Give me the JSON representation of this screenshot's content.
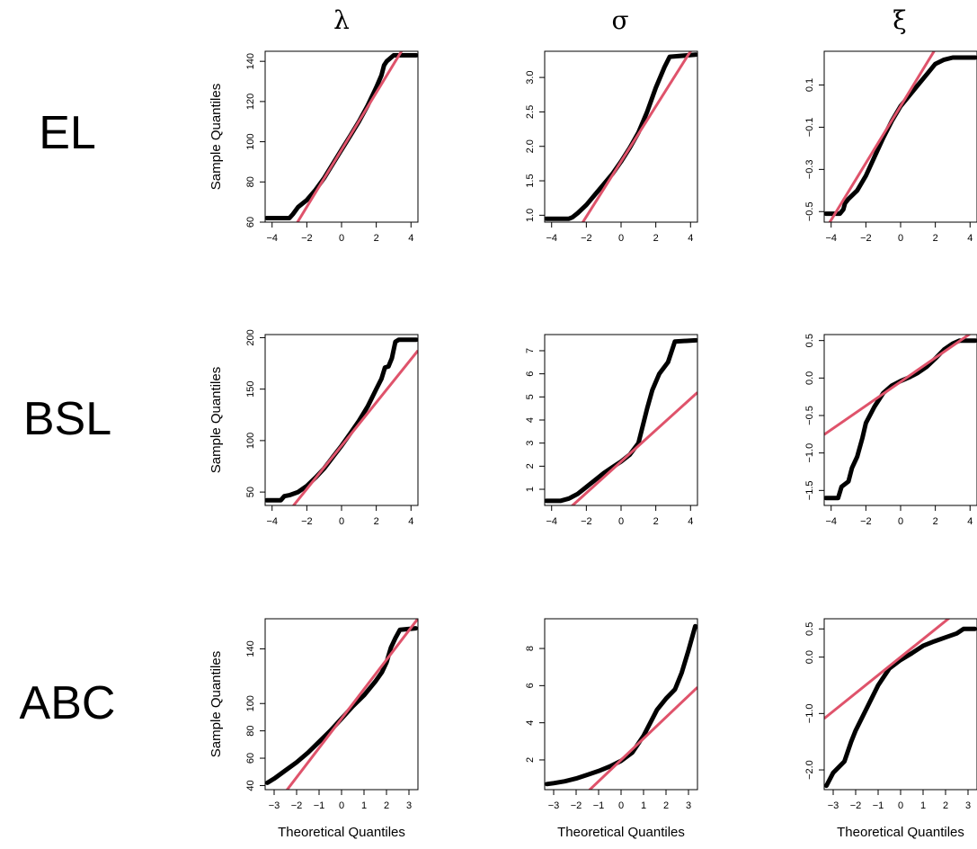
{
  "column_titles": [
    "λ",
    "σ",
    "ξ"
  ],
  "row_labels": [
    "EL",
    "BSL",
    "ABC"
  ],
  "colors": {
    "points": "#000000",
    "qqline": "#DF536B",
    "axis": "#000000"
  },
  "chart_data": [
    {
      "type": "scatter",
      "title": "λ",
      "row": "EL",
      "xlabel": "",
      "ylabel": "Sample Quantiles",
      "xlim": [
        -4.4,
        4.4
      ],
      "ylim": [
        60,
        145
      ],
      "xticks": [
        -4,
        -2,
        0,
        2,
        4
      ],
      "xtick_labels": [
        "−4",
        "−2",
        "0",
        "2",
        "4"
      ],
      "yticks": [
        60,
        80,
        100,
        120,
        140
      ],
      "ytick_labels": [
        "60",
        "80",
        "100",
        "120",
        "140"
      ],
      "qq_points": [
        [
          -4.3,
          62
        ],
        [
          -3.0,
          62
        ],
        [
          -2.8,
          64
        ],
        [
          -2.5,
          67.5
        ],
        [
          -2.0,
          71
        ],
        [
          -1.5,
          76
        ],
        [
          -1,
          82
        ],
        [
          -0.5,
          89
        ],
        [
          0,
          96
        ],
        [
          0.5,
          103
        ],
        [
          1,
          110
        ],
        [
          1.5,
          118
        ],
        [
          2.0,
          127
        ],
        [
          2.3,
          133
        ],
        [
          2.45,
          138
        ],
        [
          2.6,
          140
        ],
        [
          3.0,
          143
        ],
        [
          4.3,
          143
        ]
      ],
      "qq_line": {
        "intercept": 96,
        "slope": 14.2
      }
    },
    {
      "type": "scatter",
      "title": "σ",
      "row": "EL",
      "xlabel": "",
      "ylabel": "",
      "xlim": [
        -4.4,
        4.4
      ],
      "ylim": [
        0.9,
        3.38
      ],
      "xticks": [
        -4,
        -2,
        0,
        2,
        4
      ],
      "xtick_labels": [
        "−4",
        "−2",
        "0",
        "2",
        "4"
      ],
      "yticks": [
        1.0,
        1.5,
        2.0,
        2.5,
        3.0
      ],
      "ytick_labels": [
        "1.0",
        "1.5",
        "2.0",
        "2.5",
        "3.0"
      ],
      "qq_points": [
        [
          -4.3,
          0.95
        ],
        [
          -3.0,
          0.95
        ],
        [
          -2.8,
          0.97
        ],
        [
          -2.5,
          1.03
        ],
        [
          -2,
          1.15
        ],
        [
          -1.5,
          1.3
        ],
        [
          -1,
          1.45
        ],
        [
          -0.5,
          1.6
        ],
        [
          0,
          1.78
        ],
        [
          0.5,
          1.98
        ],
        [
          1,
          2.2
        ],
        [
          1.5,
          2.5
        ],
        [
          2,
          2.85
        ],
        [
          2.5,
          3.15
        ],
        [
          2.8,
          3.3
        ],
        [
          4.3,
          3.33
        ]
      ],
      "qq_line": {
        "intercept": 1.78,
        "slope": 0.4
      }
    },
    {
      "type": "scatter",
      "title": "ξ",
      "row": "EL",
      "xlabel": "",
      "ylabel": "",
      "xlim": [
        -4.4,
        4.4
      ],
      "ylim": [
        -0.55,
        0.26
      ],
      "xticks": [
        -4,
        -2,
        0,
        2,
        4
      ],
      "xtick_labels": [
        "−4",
        "−2",
        "0",
        "2",
        "4"
      ],
      "yticks": [
        -0.5,
        -0.3,
        -0.1,
        0.1
      ],
      "ytick_labels": [
        "−0.5",
        "−0.3",
        "−0.1",
        "0.1"
      ],
      "qq_points": [
        [
          -4.3,
          -0.51
        ],
        [
          -3.5,
          -0.51
        ],
        [
          -3.3,
          -0.49
        ],
        [
          -3.2,
          -0.46
        ],
        [
          -3.0,
          -0.44
        ],
        [
          -2.5,
          -0.4
        ],
        [
          -2,
          -0.33
        ],
        [
          -1.5,
          -0.24
        ],
        [
          -1,
          -0.15
        ],
        [
          -0.5,
          -0.07
        ],
        [
          0,
          0.0
        ],
        [
          0.5,
          0.05
        ],
        [
          1,
          0.1
        ],
        [
          1.5,
          0.15
        ],
        [
          2,
          0.2
        ],
        [
          2.5,
          0.22
        ],
        [
          3,
          0.23
        ],
        [
          4.3,
          0.23
        ]
      ],
      "qq_line": {
        "intercept": 0.0,
        "slope": 0.135
      }
    },
    {
      "type": "scatter",
      "title": "λ",
      "row": "BSL",
      "xlabel": "",
      "ylabel": "Sample Quantiles",
      "xlim": [
        -4.4,
        4.4
      ],
      "ylim": [
        37,
        203
      ],
      "xticks": [
        -4,
        -2,
        0,
        2,
        4
      ],
      "xtick_labels": [
        "−4",
        "−2",
        "0",
        "2",
        "4"
      ],
      "yticks": [
        50,
        100,
        150,
        200
      ],
      "ytick_labels": [
        "50",
        "100",
        "150",
        "200"
      ],
      "qq_points": [
        [
          -4.3,
          42
        ],
        [
          -3.5,
          42
        ],
        [
          -3.3,
          46
        ],
        [
          -3,
          47
        ],
        [
          -2.5,
          50
        ],
        [
          -2,
          56
        ],
        [
          -1.5,
          64
        ],
        [
          -1,
          73
        ],
        [
          -0.5,
          84
        ],
        [
          0,
          95
        ],
        [
          0.5,
          107
        ],
        [
          1,
          119
        ],
        [
          1.5,
          133
        ],
        [
          2,
          150
        ],
        [
          2.3,
          160
        ],
        [
          2.5,
          171
        ],
        [
          2.7,
          172
        ],
        [
          2.9,
          180
        ],
        [
          3.1,
          196
        ],
        [
          3.3,
          198
        ],
        [
          4.3,
          198
        ]
      ],
      "qq_line": {
        "intercept": 95,
        "slope": 21
      }
    },
    {
      "type": "scatter",
      "title": "σ",
      "row": "BSL",
      "xlabel": "",
      "ylabel": "",
      "xlim": [
        -4.4,
        4.4
      ],
      "ylim": [
        0.3,
        7.7
      ],
      "xticks": [
        -4,
        -2,
        0,
        2,
        4
      ],
      "xtick_labels": [
        "−4",
        "−2",
        "0",
        "2",
        "4"
      ],
      "yticks": [
        1,
        2,
        3,
        4,
        5,
        6,
        7
      ],
      "ytick_labels": [
        "1",
        "2",
        "3",
        "4",
        "5",
        "6",
        "7"
      ],
      "qq_points": [
        [
          -4.3,
          0.5
        ],
        [
          -3.5,
          0.5
        ],
        [
          -3,
          0.6
        ],
        [
          -2.5,
          0.8
        ],
        [
          -2,
          1.1
        ],
        [
          -1.5,
          1.4
        ],
        [
          -1,
          1.7
        ],
        [
          -0.5,
          1.95
        ],
        [
          0,
          2.2
        ],
        [
          0.5,
          2.5
        ],
        [
          1,
          3.0
        ],
        [
          1.2,
          3.6
        ],
        [
          1.5,
          4.5
        ],
        [
          1.8,
          5.3
        ],
        [
          2.2,
          6.0
        ],
        [
          2.7,
          6.5
        ],
        [
          3.1,
          7.4
        ],
        [
          4.3,
          7.45
        ]
      ],
      "qq_line": {
        "intercept": 2.2,
        "slope": 0.68
      }
    },
    {
      "type": "scatter",
      "title": "ξ",
      "row": "BSL",
      "xlabel": "",
      "ylabel": "",
      "xlim": [
        -4.4,
        4.4
      ],
      "ylim": [
        -1.7,
        0.58
      ],
      "xticks": [
        -4,
        -2,
        0,
        2,
        4
      ],
      "xtick_labels": [
        "−4",
        "−2",
        "0",
        "2",
        "4"
      ],
      "yticks": [
        -1.5,
        -1.0,
        -0.5,
        0.0,
        0.5
      ],
      "ytick_labels": [
        "−1.5",
        "−1.0",
        "−0.5",
        "0.0",
        "0.5"
      ],
      "qq_points": [
        [
          -4.3,
          -1.6
        ],
        [
          -3.6,
          -1.6
        ],
        [
          -3.4,
          -1.45
        ],
        [
          -3.0,
          -1.38
        ],
        [
          -2.8,
          -1.2
        ],
        [
          -2.5,
          -1.05
        ],
        [
          -2.2,
          -0.8
        ],
        [
          -2,
          -0.6
        ],
        [
          -1.5,
          -0.38
        ],
        [
          -1,
          -0.2
        ],
        [
          -0.5,
          -0.1
        ],
        [
          0,
          -0.04
        ],
        [
          0.5,
          0.01
        ],
        [
          1,
          0.07
        ],
        [
          1.5,
          0.15
        ],
        [
          2,
          0.26
        ],
        [
          2.5,
          0.38
        ],
        [
          3.0,
          0.46
        ],
        [
          3.4,
          0.5
        ],
        [
          4.3,
          0.5
        ]
      ],
      "qq_line": {
        "intercept": -0.05,
        "slope": 0.16
      }
    },
    {
      "type": "scatter",
      "title": "λ",
      "row": "ABC",
      "xlabel": "Theoretical Quantiles",
      "ylabel": "Sample Quantiles",
      "xlim": [
        -3.4,
        3.4
      ],
      "ylim": [
        37,
        162
      ],
      "xticks": [
        -3,
        -2,
        -1,
        0,
        1,
        2,
        3
      ],
      "xtick_labels": [
        "−3",
        "−2",
        "−1",
        "0",
        "1",
        "2",
        "3"
      ],
      "yticks": [
        40,
        60,
        80,
        100,
        140
      ],
      "ytick_labels": [
        "40",
        "60",
        "80",
        "100",
        "140"
      ],
      "qq_points": [
        [
          -3.3,
          42
        ],
        [
          -3.0,
          45
        ],
        [
          -2.5,
          51
        ],
        [
          -2,
          57
        ],
        [
          -1.5,
          64
        ],
        [
          -1,
          72
        ],
        [
          -0.5,
          80
        ],
        [
          0,
          89
        ],
        [
          0.5,
          98
        ],
        [
          1,
          106
        ],
        [
          1.5,
          116
        ],
        [
          1.8,
          123
        ],
        [
          2.0,
          130
        ],
        [
          2.2,
          141
        ],
        [
          2.4,
          148
        ],
        [
          2.6,
          154
        ],
        [
          3.3,
          155
        ]
      ],
      "qq_line": {
        "intercept": 89,
        "slope": 21.5
      }
    },
    {
      "type": "scatter",
      "title": "σ",
      "row": "ABC",
      "xlabel": "Theoretical Quantiles",
      "ylabel": "",
      "xlim": [
        -3.4,
        3.4
      ],
      "ylim": [
        0.4,
        9.6
      ],
      "xticks": [
        -3,
        -2,
        -1,
        0,
        1,
        2,
        3
      ],
      "xtick_labels": [
        "−3",
        "−2",
        "−1",
        "0",
        "1",
        "2",
        "3"
      ],
      "yticks": [
        2,
        4,
        6,
        8
      ],
      "ytick_labels": [
        "2",
        "4",
        "6",
        "8"
      ],
      "qq_points": [
        [
          -3.3,
          0.7
        ],
        [
          -3,
          0.75
        ],
        [
          -2.5,
          0.85
        ],
        [
          -2,
          1.0
        ],
        [
          -1.5,
          1.2
        ],
        [
          -1,
          1.4
        ],
        [
          -0.5,
          1.65
        ],
        [
          0,
          1.95
        ],
        [
          0.5,
          2.4
        ],
        [
          1,
          3.3
        ],
        [
          1.3,
          4.0
        ],
        [
          1.6,
          4.7
        ],
        [
          2,
          5.3
        ],
        [
          2.4,
          5.8
        ],
        [
          2.7,
          6.7
        ],
        [
          3,
          7.9
        ],
        [
          3.3,
          9.2
        ]
      ],
      "qq_line": {
        "intercept": 2.0,
        "slope": 1.15
      }
    },
    {
      "type": "scatter",
      "title": "ξ",
      "row": "ABC",
      "xlabel": "Theoretical Quantiles",
      "ylabel": "",
      "xlim": [
        -3.4,
        3.4
      ],
      "ylim": [
        -2.35,
        0.68
      ],
      "xticks": [
        -3,
        -2,
        -1,
        0,
        1,
        2,
        3
      ],
      "xtick_labels": [
        "−3",
        "−2",
        "−1",
        "0",
        "1",
        "2",
        "3"
      ],
      "yticks": [
        -2.0,
        -1.0,
        0.0,
        0.5
      ],
      "ytick_labels": [
        "−2.0",
        "−1.0",
        "0.0",
        "0.5"
      ],
      "qq_points": [
        [
          -3.3,
          -2.28
        ],
        [
          -3.0,
          -2.05
        ],
        [
          -2.5,
          -1.85
        ],
        [
          -2.2,
          -1.5
        ],
        [
          -2,
          -1.3
        ],
        [
          -1.5,
          -0.9
        ],
        [
          -1,
          -0.5
        ],
        [
          -0.5,
          -0.2
        ],
        [
          0,
          -0.05
        ],
        [
          0.5,
          0.07
        ],
        [
          1,
          0.2
        ],
        [
          1.5,
          0.28
        ],
        [
          2,
          0.35
        ],
        [
          2.5,
          0.42
        ],
        [
          2.8,
          0.5
        ],
        [
          3.3,
          0.5
        ]
      ],
      "qq_line": {
        "intercept": 0.0,
        "slope": 0.32
      }
    }
  ]
}
